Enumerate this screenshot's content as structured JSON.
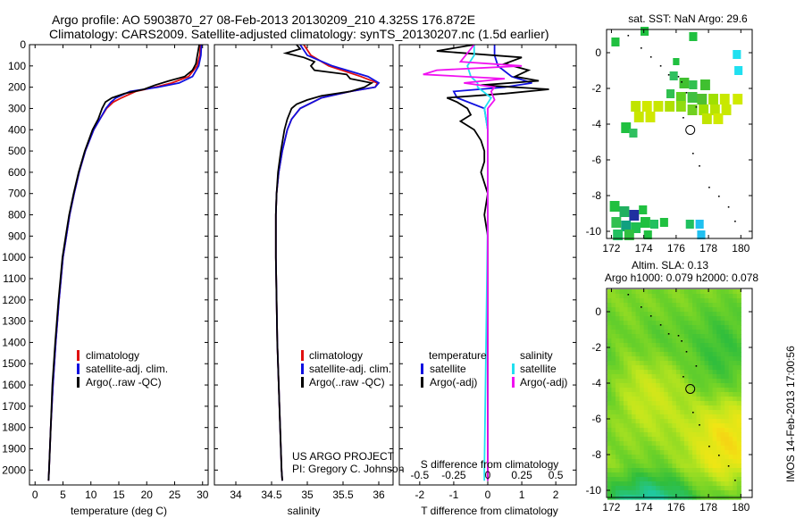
{
  "header": {
    "line1": "Argo profile: AO 5903870_27 08-Feb-2013 20130209_210 4.325S 176.872E",
    "line2": "Climatology: CARS2009. Satellite-adjusted climatology: synTS_20130207.nc (1.5d earlier)"
  },
  "timestamp": "IMOS 14-Feb-2013 17:00:56",
  "project": {
    "line1": "US ARGO PROJECT",
    "line2": "PI: Gregory C. Johnson"
  },
  "colors": {
    "climatology": "#e01010",
    "satellite": "#1010e0",
    "argo": "#000000",
    "sat_s": "#20e0f0",
    "argo_s": "#f010f0"
  },
  "chart_data": [
    {
      "type": "line",
      "name": "temperature",
      "xlabel": "temperature (deg C)",
      "xlim": [
        -1,
        31
      ],
      "ylim": [
        2070,
        0
      ],
      "xticks": [
        "0",
        "5",
        "10",
        "15",
        "20",
        "25",
        "30"
      ],
      "xtick_values": [
        0,
        5,
        10,
        15,
        20,
        25,
        30
      ],
      "yticks": [
        "0",
        "100",
        "200",
        "300",
        "400",
        "500",
        "600",
        "700",
        "800",
        "900",
        "1000",
        "1100",
        "1200",
        "1300",
        "1400",
        "1500",
        "1600",
        "1700",
        "1800",
        "1900",
        "2000"
      ],
      "ytick_values": [
        0,
        100,
        200,
        300,
        400,
        500,
        600,
        700,
        800,
        900,
        1000,
        1100,
        1200,
        1300,
        1400,
        1500,
        1600,
        1700,
        1800,
        1900,
        2000
      ],
      "legend": [
        "climatology",
        "satellite-adj. clim.",
        "Argo(..raw -QC)"
      ],
      "series": [
        {
          "name": "climatology",
          "color": "#e01010",
          "depth": [
            0,
            50,
            100,
            150,
            180,
            200,
            220,
            250,
            270,
            300,
            350,
            400,
            500,
            600,
            700,
            800,
            900,
            1000,
            1200,
            1400,
            1600,
            1800,
            2000,
            2050
          ],
          "values": [
            29.6,
            29.5,
            29.0,
            27.5,
            24.5,
            21.5,
            18.0,
            15.5,
            14.0,
            12.8,
            11.6,
            10.5,
            9.0,
            7.9,
            7.0,
            6.2,
            5.6,
            5.0,
            4.3,
            3.7,
            3.2,
            2.8,
            2.5,
            2.4
          ]
        },
        {
          "name": "satellite-adj. clim.",
          "color": "#1010e0",
          "depth": [
            0,
            50,
            100,
            150,
            180,
            200,
            220,
            250,
            270,
            300,
            350,
            400,
            500,
            600,
            700,
            800,
            900,
            1000,
            1200,
            1400,
            1600,
            1800,
            2000,
            2050
          ],
          "values": [
            29.8,
            29.7,
            29.3,
            28.2,
            25.8,
            22.0,
            17.0,
            14.5,
            13.6,
            12.7,
            11.6,
            10.5,
            9.0,
            7.9,
            7.0,
            6.2,
            5.6,
            5.0,
            4.3,
            3.7,
            3.2,
            2.8,
            2.5,
            2.4
          ]
        },
        {
          "name": "Argo(..raw -QC)",
          "color": "#000000",
          "depth": [
            0,
            30,
            60,
            90,
            120,
            150,
            170,
            190,
            210,
            230,
            250,
            270,
            300,
            350,
            400,
            500,
            600,
            700,
            800,
            900,
            1000,
            1200,
            1400,
            1600,
            1800,
            2000,
            2050
          ],
          "values": [
            29.4,
            29.2,
            29.0,
            28.8,
            28.2,
            26.8,
            24.0,
            21.5,
            19.5,
            16.0,
            13.8,
            12.6,
            12.0,
            11.3,
            10.3,
            8.9,
            7.8,
            6.9,
            6.1,
            5.5,
            4.9,
            4.2,
            3.6,
            3.1,
            2.8,
            2.5,
            2.4
          ]
        }
      ]
    },
    {
      "type": "line",
      "name": "salinity",
      "xlabel": "salinity",
      "xlim": [
        33.7,
        36.2
      ],
      "ylim": [
        2070,
        0
      ],
      "xticks": [
        "34",
        "34.5",
        "35",
        "35.5",
        "36"
      ],
      "xtick_values": [
        34,
        34.5,
        35,
        35.5,
        36
      ],
      "legend": [
        "climatology",
        "satellite-adj. clim.",
        "Argo(..raw -QC)"
      ],
      "series": [
        {
          "name": "climatology",
          "color": "#e01010",
          "depth": [
            0,
            50,
            100,
            150,
            180,
            200,
            220,
            250,
            300,
            350,
            400,
            500,
            600,
            700,
            800,
            900,
            1000,
            1200,
            1400,
            1600,
            1800,
            2000,
            2050
          ],
          "values": [
            34.95,
            35.05,
            35.3,
            35.75,
            35.98,
            35.95,
            35.6,
            35.2,
            34.9,
            34.78,
            34.72,
            34.65,
            34.6,
            34.57,
            34.56,
            34.56,
            34.56,
            34.57,
            34.58,
            34.6,
            34.62,
            34.64,
            34.65
          ]
        },
        {
          "name": "satellite-adj. clim.",
          "color": "#1010e0",
          "depth": [
            0,
            50,
            100,
            150,
            180,
            200,
            220,
            250,
            300,
            350,
            400,
            500,
            600,
            700,
            800,
            900,
            1000,
            1200,
            1400,
            1600,
            1800,
            2000,
            2050
          ],
          "values": [
            34.9,
            35.0,
            35.35,
            35.85,
            36.0,
            35.95,
            35.6,
            35.2,
            34.9,
            34.78,
            34.72,
            34.65,
            34.6,
            34.57,
            34.56,
            34.56,
            34.56,
            34.57,
            34.58,
            34.6,
            34.62,
            34.64,
            34.65
          ]
        },
        {
          "name": "Argo(..raw -QC)",
          "color": "#000000",
          "depth": [
            0,
            20,
            40,
            60,
            80,
            100,
            120,
            140,
            160,
            180,
            200,
            220,
            240,
            260,
            280,
            300,
            350,
            400,
            500,
            600,
            700,
            800,
            900,
            1000,
            1200,
            1400,
            1600,
            1800,
            2000,
            2050
          ],
          "values": [
            34.85,
            34.9,
            34.7,
            34.95,
            35.1,
            35.05,
            35.1,
            35.55,
            35.6,
            35.9,
            35.8,
            35.6,
            35.2,
            35.0,
            34.85,
            34.78,
            34.72,
            34.68,
            34.63,
            34.59,
            34.57,
            34.56,
            34.56,
            34.56,
            34.57,
            34.58,
            34.6,
            34.62,
            34.64,
            34.65
          ]
        }
      ]
    },
    {
      "type": "line",
      "name": "differences",
      "xlabel": "T difference from climatology",
      "xlabel_top": "S difference from climatology",
      "xlim": [
        -2.6,
        2.6
      ],
      "ylim": [
        2070,
        0
      ],
      "xticks": [
        "-2",
        "-1",
        "0",
        "1",
        "2"
      ],
      "xtick_values": [
        -2,
        -1,
        0,
        1,
        2
      ],
      "xticks_top": [
        "-0.5",
        "-0.25",
        "0",
        "0.25",
        "0.5"
      ],
      "xtick_top_values": [
        -2,
        -1,
        0,
        1,
        2
      ],
      "legend_title_left": "temperature",
      "legend_title_right": "salinity",
      "legend_left": [
        "satellite",
        "Argo(-adj)"
      ],
      "legend_right": [
        "satellite",
        "Argo(-adj)"
      ],
      "series": [
        {
          "name": "T satellite",
          "color": "#1010e0",
          "depth": [
            0,
            50,
            100,
            150,
            180,
            200,
            220,
            250,
            300,
            400,
            600,
            800,
            1000,
            1500,
            2000,
            2050
          ],
          "values": [
            0.2,
            0.2,
            0.3,
            0.7,
            1.3,
            0.5,
            -1.0,
            -0.9,
            -0.1,
            0.0,
            0.0,
            0.0,
            0.0,
            0.0,
            0.0,
            0.0
          ]
        },
        {
          "name": "T Argo(-adj)",
          "color": "#000000",
          "depth": [
            0,
            30,
            60,
            90,
            120,
            150,
            170,
            190,
            210,
            230,
            250,
            270,
            300,
            330,
            360,
            400,
            450,
            500,
            550,
            600,
            650,
            700,
            800,
            900,
            1000,
            1200,
            1500,
            1800,
            2000,
            2050
          ],
          "values": [
            -0.4,
            -1.5,
            1.0,
            0.5,
            1.2,
            0.8,
            1.5,
            -0.2,
            1.8,
            0.5,
            -1.2,
            -0.9,
            -0.6,
            -0.5,
            -0.8,
            -0.4,
            -0.2,
            -0.1,
            -0.1,
            -0.2,
            -0.1,
            0.0,
            -0.1,
            0.0,
            0.0,
            0.0,
            0.0,
            0.0,
            0.0,
            0.0
          ]
        },
        {
          "name": "S satellite",
          "color": "#20e0f0",
          "depth": [
            0,
            50,
            100,
            150,
            180,
            200,
            250,
            300,
            400,
            800,
            2000,
            2050
          ],
          "values": [
            -0.4,
            -0.4,
            -0.6,
            -0.5,
            -0.3,
            -0.3,
            0.1,
            -0.1,
            0.0,
            0.0,
            -0.1,
            -0.1
          ]
        },
        {
          "name": "S Argo(-adj)",
          "color": "#f010f0",
          "depth": [
            0,
            40,
            80,
            100,
            120,
            140,
            160,
            180,
            200,
            220,
            260,
            300,
            400,
            600,
            1000,
            2000,
            2050
          ],
          "values": [
            -0.4,
            -0.6,
            -0.8,
            1.0,
            -1.5,
            -1.9,
            0.5,
            -0.7,
            0.2,
            0.1,
            0.2,
            0.0,
            0.0,
            0.0,
            0.0,
            0.0,
            0.0
          ]
        }
      ]
    },
    {
      "type": "heatmap",
      "name": "sst map",
      "title": "sat. SST: NaN Argo: 29.6",
      "xlim": [
        171.7,
        180.7
      ],
      "ylim": [
        -10.4,
        1.3
      ],
      "xticks": [
        "172",
        "174",
        "176",
        "178",
        "180"
      ],
      "xtick_values": [
        172,
        174,
        176,
        178,
        180
      ],
      "yticks": [
        "0",
        "-2",
        "-4",
        "-6",
        "-8",
        "-10"
      ],
      "ytick_values": [
        0,
        -2,
        -4,
        -6,
        -8,
        -10
      ],
      "argo_position": [
        176.872,
        -4.325
      ]
    },
    {
      "type": "heatmap",
      "name": "sla map",
      "title": "Altim. SLA: 0.13",
      "subtitle": "Argo h1000: 0.079 h2000: 0.078",
      "xlim": [
        171.7,
        180.7
      ],
      "ylim": [
        -10.4,
        1.3
      ],
      "xticks": [
        "172",
        "174",
        "176",
        "178",
        "180"
      ],
      "xtick_values": [
        172,
        174,
        176,
        178,
        180
      ],
      "yticks": [
        "0",
        "-2",
        "-4",
        "-6",
        "-8",
        "-10"
      ],
      "ytick_values": [
        0,
        -2,
        -4,
        -6,
        -8,
        -10
      ],
      "argo_position": [
        176.872,
        -4.325
      ]
    }
  ]
}
